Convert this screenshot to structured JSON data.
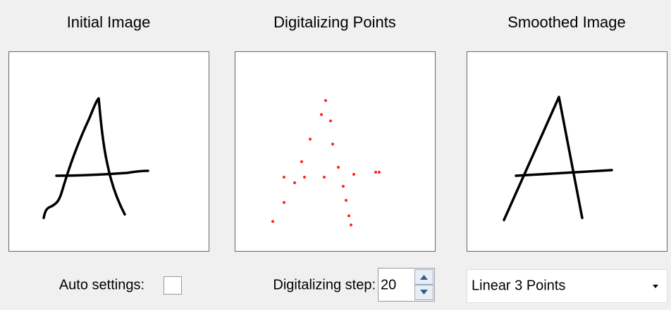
{
  "panels": [
    {
      "title": "Initial Image"
    },
    {
      "title": "Digitalizing Points"
    },
    {
      "title": "Smoothed Image"
    }
  ],
  "controls": {
    "auto_settings_label": "Auto settings:",
    "step_label": "Digitalizing step:",
    "step_value": "20",
    "method": "Linear 3 Points"
  }
}
